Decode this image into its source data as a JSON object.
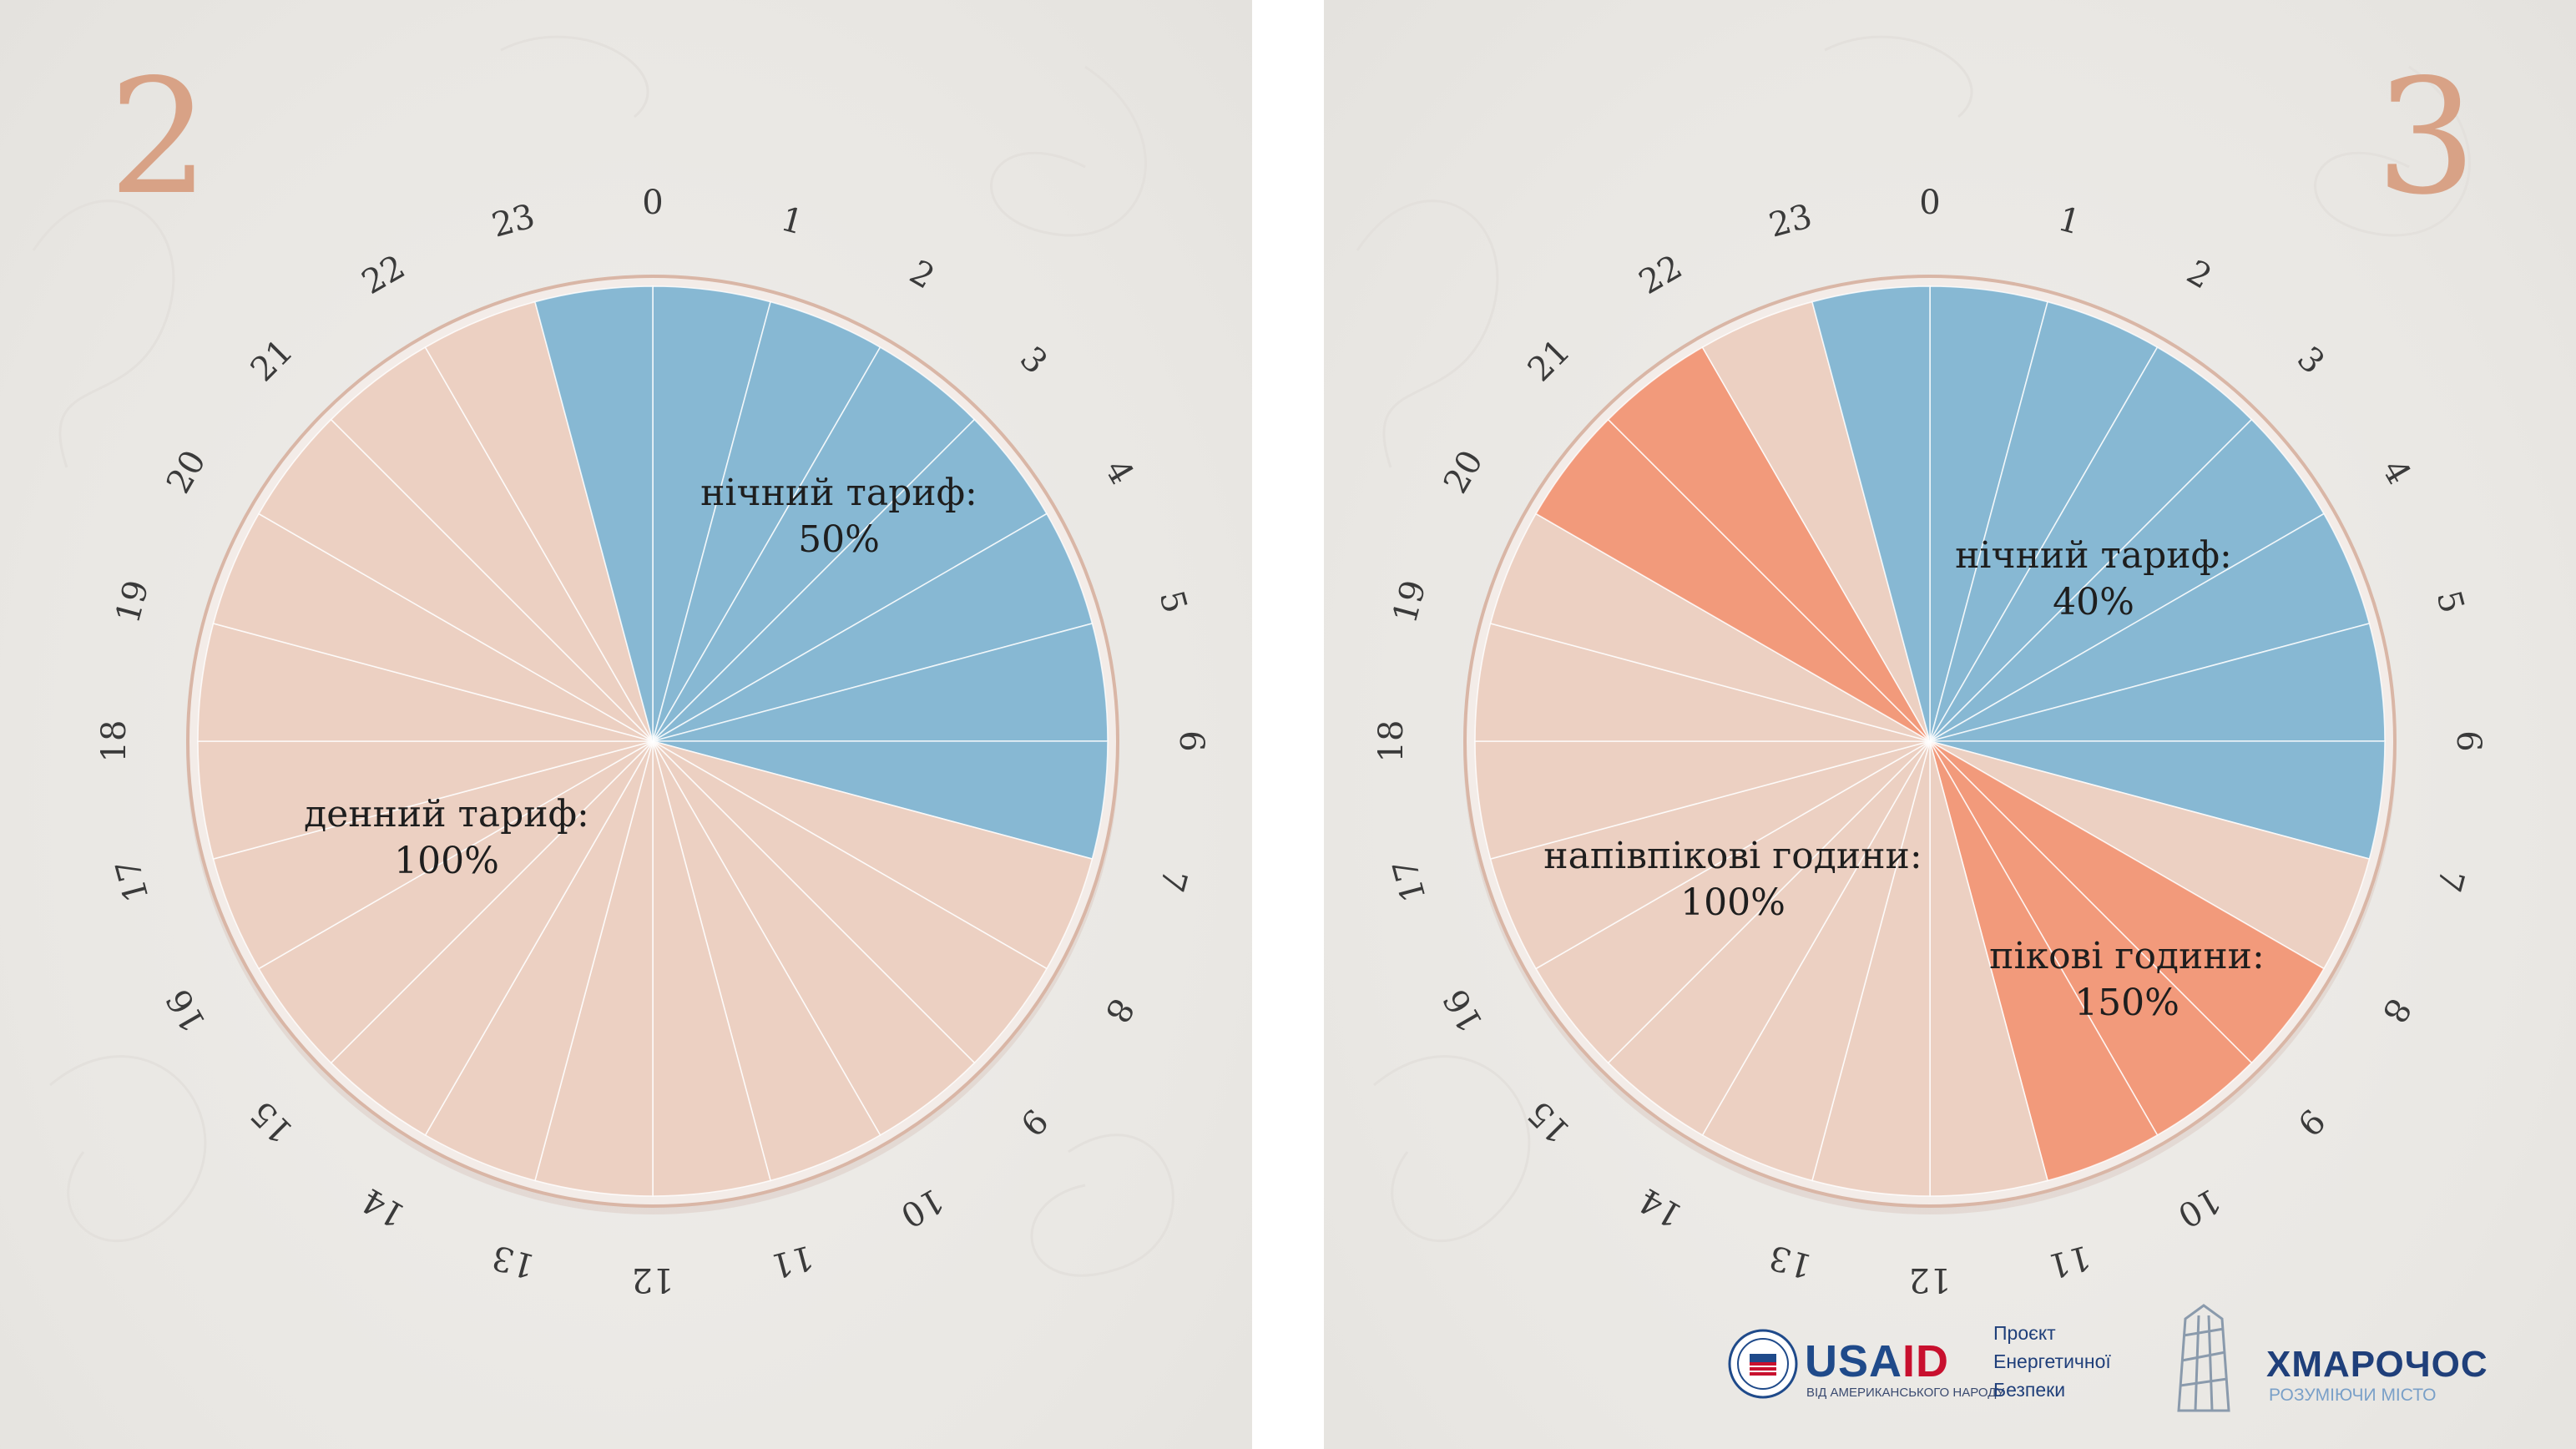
{
  "panels": [
    {
      "number": "2",
      "chart_data": {
        "type": "pie",
        "hours": [
          "0",
          "1",
          "2",
          "3",
          "4",
          "5",
          "6",
          "7",
          "8",
          "9",
          "10",
          "11",
          "12",
          "13",
          "14",
          "15",
          "16",
          "17",
          "18",
          "19",
          "20",
          "21",
          "22",
          "23"
        ],
        "zone_colors": {
          "night": "#87b8d3",
          "day": "#ecd0c2",
          "peak": "#f29a7b"
        },
        "hour_zones": [
          "night",
          "night",
          "night",
          "night",
          "night",
          "night",
          "night",
          "day",
          "day",
          "day",
          "day",
          "day",
          "day",
          "day",
          "day",
          "day",
          "day",
          "day",
          "day",
          "day",
          "day",
          "day",
          "day",
          "night"
        ],
        "labels": [
          {
            "zone": "night",
            "text": "нічний тариф:",
            "value": "50%"
          },
          {
            "zone": "day",
            "text": "денний тариф:",
            "value": "100%"
          }
        ]
      }
    },
    {
      "number": "3",
      "chart_data": {
        "type": "pie",
        "hours": [
          "0",
          "1",
          "2",
          "3",
          "4",
          "5",
          "6",
          "7",
          "8",
          "9",
          "10",
          "11",
          "12",
          "13",
          "14",
          "15",
          "16",
          "17",
          "18",
          "19",
          "20",
          "21",
          "22",
          "23"
        ],
        "zone_colors": {
          "night": "#87b8d3",
          "day": "#ecd0c2",
          "peak": "#f29a7b"
        },
        "hour_zones": [
          "night",
          "night",
          "night",
          "night",
          "night",
          "night",
          "night",
          "day",
          "peak",
          "peak",
          "peak",
          "day",
          "day",
          "day",
          "day",
          "day",
          "day",
          "day",
          "day",
          "day",
          "peak",
          "peak",
          "day",
          "night"
        ],
        "labels": [
          {
            "zone": "night",
            "text": "нічний тариф:",
            "value": "40%"
          },
          {
            "zone": "day",
            "text": "напівпікові години:",
            "value": "100%"
          },
          {
            "zone": "peak",
            "text": "пікові години:",
            "value": "150%"
          }
        ]
      }
    }
  ],
  "logos": {
    "usaid": {
      "name_blue": "USA",
      "name_red": "ID",
      "subtitle": "ВІД АМЕРИКАНСЬКОГО НАРОДУ"
    },
    "project": [
      "Проєкт",
      "Енергетичної",
      "Безпеки"
    ],
    "skyscraper": {
      "title": "ХМАРОЧОС",
      "subtitle": "РОЗУМІЮЧИ МІСТО"
    }
  }
}
